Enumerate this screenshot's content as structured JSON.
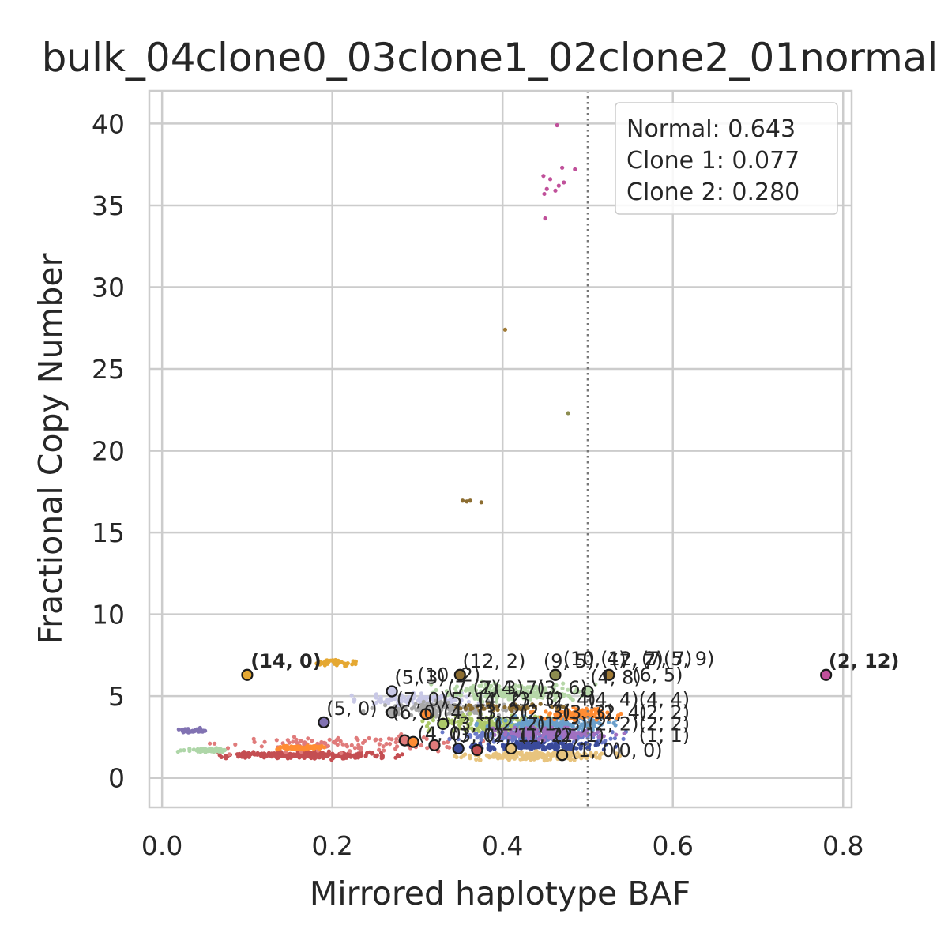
{
  "chart_data": {
    "type": "scatter",
    "title": "bulk_04clone0_03clone1_02clone2_01normal",
    "xlabel": "Mirrored haplotype BAF",
    "ylabel": "Fractional Copy Number",
    "xlim": [
      -0.015,
      0.81
    ],
    "ylim": [
      -1.8,
      42
    ],
    "xticks": [
      "0.0",
      "0.2",
      "0.4",
      "0.6",
      "0.8"
    ],
    "xtick_values": [
      0.0,
      0.2,
      0.4,
      0.6,
      0.8
    ],
    "yticks": [
      "0",
      "5",
      "10",
      "15",
      "20",
      "25",
      "30",
      "35",
      "40"
    ],
    "ytick_values": [
      0,
      5,
      10,
      15,
      20,
      25,
      30,
      35,
      40
    ],
    "grid": true,
    "reference_line": {
      "x": 0.5,
      "style": "dotted",
      "color": "#777777"
    },
    "legend": {
      "placement": "top-right",
      "lines": [
        "Normal: 0.643",
        "Clone 1: 0.077",
        "Clone 2: 0.280"
      ]
    },
    "clusters": [
      {
        "color": "#c44e52",
        "x_range": [
          0.03,
          0.3
        ],
        "y_range": [
          1.1,
          1.7
        ],
        "n": 260
      },
      {
        "color": "#e07b7b",
        "x_range": [
          0.02,
          0.42
        ],
        "y_range": [
          1.3,
          2.8
        ],
        "n": 110
      },
      {
        "color": "#8172b2",
        "x_range": [
          0.01,
          0.06
        ],
        "y_range": [
          2.7,
          3.1
        ],
        "n": 40
      },
      {
        "color": "#aed6a8",
        "x_range": [
          0.01,
          0.09
        ],
        "y_range": [
          1.5,
          1.9
        ],
        "n": 60
      },
      {
        "color": "#ff8c33",
        "x_range": [
          0.12,
          0.2
        ],
        "y_range": [
          1.7,
          2.0
        ],
        "n": 90
      },
      {
        "color": "#e5a832",
        "x_range": [
          0.16,
          0.24
        ],
        "y_range": [
          6.8,
          7.3
        ],
        "n": 40
      },
      {
        "color": "#c8c8e6",
        "x_range": [
          0.2,
          0.4
        ],
        "y_range": [
          4.3,
          5.3
        ],
        "n": 120
      },
      {
        "color": "#a8a8a8",
        "x_range": [
          0.23,
          0.45
        ],
        "y_range": [
          3.6,
          4.8
        ],
        "n": 150
      },
      {
        "color": "#b6d7a8",
        "x_range": [
          0.3,
          0.52
        ],
        "y_range": [
          4.5,
          6.0
        ],
        "n": 220
      },
      {
        "color": "#adc96a",
        "x_range": [
          0.29,
          0.5
        ],
        "y_range": [
          2.6,
          4.0
        ],
        "n": 220
      },
      {
        "color": "#6a9fca",
        "x_range": [
          0.36,
          0.56
        ],
        "y_range": [
          2.7,
          3.9
        ],
        "n": 180
      },
      {
        "color": "#6b7ac9",
        "x_range": [
          0.32,
          0.56
        ],
        "y_range": [
          2.0,
          3.0
        ],
        "n": 180
      },
      {
        "color": "#3a4a9a",
        "x_range": [
          0.33,
          0.56
        ],
        "y_range": [
          1.6,
          2.3
        ],
        "n": 150
      },
      {
        "color": "#a070c0",
        "x_range": [
          0.36,
          0.56
        ],
        "y_range": [
          2.2,
          3.2
        ],
        "n": 140
      },
      {
        "color": "#e8c47e",
        "x_range": [
          0.32,
          0.56
        ],
        "y_range": [
          1.0,
          1.7
        ],
        "n": 200
      },
      {
        "color": "#ff8c33",
        "x_range": [
          0.42,
          0.56
        ],
        "y_range": [
          3.3,
          4.5
        ],
        "n": 100
      },
      {
        "color": "#8c6d31",
        "x_range": [
          0.32,
          0.49
        ],
        "y_range": [
          4.0,
          4.6
        ],
        "n": 60
      }
    ],
    "outliers": [
      {
        "x": 0.464,
        "y": 39.9,
        "color": "#c0509a"
      },
      {
        "x": 0.47,
        "y": 37.3,
        "color": "#c0509a"
      },
      {
        "x": 0.485,
        "y": 37.2,
        "color": "#c0509a"
      },
      {
        "x": 0.448,
        "y": 36.8,
        "color": "#c0509a"
      },
      {
        "x": 0.456,
        "y": 36.6,
        "color": "#c0509a"
      },
      {
        "x": 0.452,
        "y": 36.0,
        "color": "#c0509a"
      },
      {
        "x": 0.466,
        "y": 36.2,
        "color": "#c0509a"
      },
      {
        "x": 0.472,
        "y": 36.4,
        "color": "#c0509a"
      },
      {
        "x": 0.449,
        "y": 35.7,
        "color": "#c0509a"
      },
      {
        "x": 0.462,
        "y": 35.9,
        "color": "#c0509a"
      },
      {
        "x": 0.45,
        "y": 34.2,
        "color": "#c0509a"
      },
      {
        "x": 0.403,
        "y": 27.4,
        "color": "#a07a35"
      },
      {
        "x": 0.477,
        "y": 22.3,
        "color": "#8c8c50"
      },
      {
        "x": 0.353,
        "y": 16.95,
        "color": "#8c6d31"
      },
      {
        "x": 0.358,
        "y": 16.9,
        "color": "#8c6d31"
      },
      {
        "x": 0.362,
        "y": 16.95,
        "color": "#8c6d31"
      },
      {
        "x": 0.375,
        "y": 16.85,
        "color": "#8c6d31"
      }
    ],
    "centroids": [
      {
        "x": 0.1,
        "y": 6.3,
        "color": "#e5a832",
        "label": "(14, 0)",
        "bold": true,
        "label_dx": 0.004,
        "label_dy": 0.45
      },
      {
        "x": 0.78,
        "y": 6.3,
        "color": "#c0509a",
        "label": "(2, 12)",
        "bold": true,
        "label_dx": 0.003,
        "label_dy": 0.45
      },
      {
        "x": 0.35,
        "y": 6.3,
        "color": "#8c6d31",
        "label": "(12, 2)",
        "bold": false,
        "label_dx": 0.003,
        "label_dy": 0.45
      },
      {
        "x": 0.462,
        "y": 6.3,
        "color": "#8c8c50",
        "label": "(9, 5)",
        "bold": false,
        "label_dx": -0.014,
        "label_dy": 0.45
      },
      {
        "x": 0.525,
        "y": 6.3,
        "color": "#a07a35",
        "label": "(7, 7)",
        "bold": false,
        "label_dx": 0.003,
        "label_dy": 0.45
      },
      {
        "x": 0.27,
        "y": 5.3,
        "color": "#c8c8e6",
        "label": "(5, 3)",
        "bold": false,
        "label_dx": 0.003,
        "label_dy": 0.45
      },
      {
        "x": 0.5,
        "y": 5.3,
        "color": "#b6d7a8",
        "label": "(4, 8)",
        "bold": false,
        "label_dx": 0.003,
        "label_dy": 0.45
      },
      {
        "x": 0.19,
        "y": 3.4,
        "color": "#8172b2",
        "label": "(5, 0)",
        "bold": false,
        "label_dx": 0.003,
        "label_dy": 0.45
      },
      {
        "x": 0.27,
        "y": 4.0,
        "color": "#a8a8a8",
        "label": "",
        "bold": false,
        "label_dx": 0.0,
        "label_dy": 0.0
      },
      {
        "x": 0.31,
        "y": 3.9,
        "color": "#ff8c33",
        "label": "",
        "bold": false,
        "label_dx": 0.0,
        "label_dy": 0.0
      },
      {
        "x": 0.285,
        "y": 2.3,
        "color": "#e07b7b",
        "label": "",
        "bold": false,
        "label_dx": 0.0,
        "label_dy": 0.0
      },
      {
        "x": 0.295,
        "y": 2.2,
        "color": "#ff8c33",
        "label": "",
        "bold": false,
        "label_dx": 0.0,
        "label_dy": 0.0
      },
      {
        "x": 0.32,
        "y": 2.0,
        "color": "#e07b7b",
        "label": "",
        "bold": false,
        "label_dx": 0.0,
        "label_dy": 0.0
      },
      {
        "x": 0.33,
        "y": 3.3,
        "color": "#adc96a",
        "label": "",
        "bold": false,
        "label_dx": 0.0,
        "label_dy": 0.0
      },
      {
        "x": 0.348,
        "y": 1.8,
        "color": "#3a4a9a",
        "label": "",
        "bold": false,
        "label_dx": 0.0,
        "label_dy": 0.0
      },
      {
        "x": 0.37,
        "y": 1.7,
        "color": "#c44e52",
        "label": "",
        "bold": false,
        "label_dx": 0.0,
        "label_dy": 0.0
      },
      {
        "x": 0.41,
        "y": 1.8,
        "color": "#e8c47e",
        "label": "",
        "bold": false,
        "label_dx": 0.0,
        "label_dy": 0.0
      },
      {
        "x": 0.47,
        "y": 1.4,
        "color": "#e8c47e",
        "label": "",
        "bold": false,
        "label_dx": 0.0,
        "label_dy": 0.0
      }
    ],
    "overlap_labels": [
      {
        "x": 0.471,
        "y": 6.9,
        "text": "(10, 4)"
      },
      {
        "x": 0.515,
        "y": 6.9,
        "text": "(12, 2)"
      },
      {
        "x": 0.563,
        "y": 6.9,
        "text": "(7, 7)"
      },
      {
        "x": 0.589,
        "y": 6.9,
        "text": "(5, 9)"
      },
      {
        "x": 0.3,
        "y": 5.9,
        "text": "(10, 2)"
      },
      {
        "x": 0.552,
        "y": 5.9,
        "text": "(6, 5)"
      },
      {
        "x": 0.335,
        "y": 5.1,
        "text": "(7, 2)"
      },
      {
        "x": 0.365,
        "y": 5.1,
        "text": "(7, 3)"
      },
      {
        "x": 0.39,
        "y": 5.1,
        "text": "(4, 7)"
      },
      {
        "x": 0.44,
        "y": 5.1,
        "text": "(3, 6)"
      },
      {
        "x": 0.275,
        "y": 4.4,
        "text": "(7, 0)"
      },
      {
        "x": 0.33,
        "y": 4.4,
        "text": "(5, 1)"
      },
      {
        "x": 0.37,
        "y": 4.4,
        "text": "(4, 2)"
      },
      {
        "x": 0.41,
        "y": 4.4,
        "text": "(3, 3)"
      },
      {
        "x": 0.45,
        "y": 4.4,
        "text": "(2, 4)"
      },
      {
        "x": 0.5,
        "y": 4.4,
        "text": "(4, 4)"
      },
      {
        "x": 0.56,
        "y": 4.4,
        "text": "(4, 4)"
      },
      {
        "x": 0.27,
        "y": 3.6,
        "text": "(6, 0)"
      },
      {
        "x": 0.33,
        "y": 3.6,
        "text": "(4, 1)"
      },
      {
        "x": 0.37,
        "y": 3.6,
        "text": "(3, 2)"
      },
      {
        "x": 0.42,
        "y": 3.6,
        "text": "(2, 3)"
      },
      {
        "x": 0.47,
        "y": 3.6,
        "text": "(3, 3)"
      },
      {
        "x": 0.51,
        "y": 3.6,
        "text": "(2, 4)"
      },
      {
        "x": 0.56,
        "y": 3.6,
        "text": "(2, 2)"
      },
      {
        "x": 0.34,
        "y": 2.9,
        "text": "(3, 1)"
      },
      {
        "x": 0.39,
        "y": 2.9,
        "text": "(2, 2)"
      },
      {
        "x": 0.44,
        "y": 2.9,
        "text": "(1, 3)"
      },
      {
        "x": 0.5,
        "y": 2.9,
        "text": "(2, 2)"
      },
      {
        "x": 0.56,
        "y": 2.9,
        "text": "(2, 2)"
      },
      {
        "x": 0.3,
        "y": 2.3,
        "text": "(4, 0)"
      },
      {
        "x": 0.34,
        "y": 2.2,
        "text": "(3, 0)"
      },
      {
        "x": 0.38,
        "y": 2.2,
        "text": "(2, 1)"
      },
      {
        "x": 0.42,
        "y": 2.2,
        "text": "(1, 2)"
      },
      {
        "x": 0.46,
        "y": 2.2,
        "text": "(2, 1)"
      },
      {
        "x": 0.56,
        "y": 2.2,
        "text": "(1, 1)"
      },
      {
        "x": 0.48,
        "y": 1.3,
        "text": "(1, 0)"
      },
      {
        "x": 0.528,
        "y": 1.3,
        "text": "(0, 0)"
      }
    ]
  }
}
